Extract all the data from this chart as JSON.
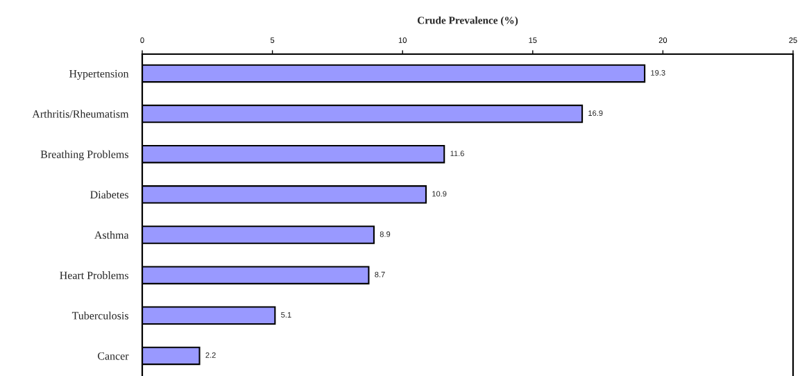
{
  "chart_data": {
    "type": "bar",
    "orientation": "horizontal",
    "xlabel": "Crude Prevalence (%)",
    "categories": [
      "Hypertension",
      "Arthritis/Rheumatism",
      "Breathing Problems",
      "Diabetes",
      "Asthma",
      "Heart Problems",
      "Tuberculosis",
      "Cancer"
    ],
    "values": [
      19.3,
      16.9,
      11.6,
      10.9,
      8.9,
      8.7,
      5.1,
      2.2
    ],
    "color": "#9999ff",
    "xlim": [
      0,
      25
    ],
    "xticks": [
      0,
      5,
      10,
      15,
      20,
      25
    ],
    "data_labels": true,
    "grid": false,
    "legend": false
  }
}
